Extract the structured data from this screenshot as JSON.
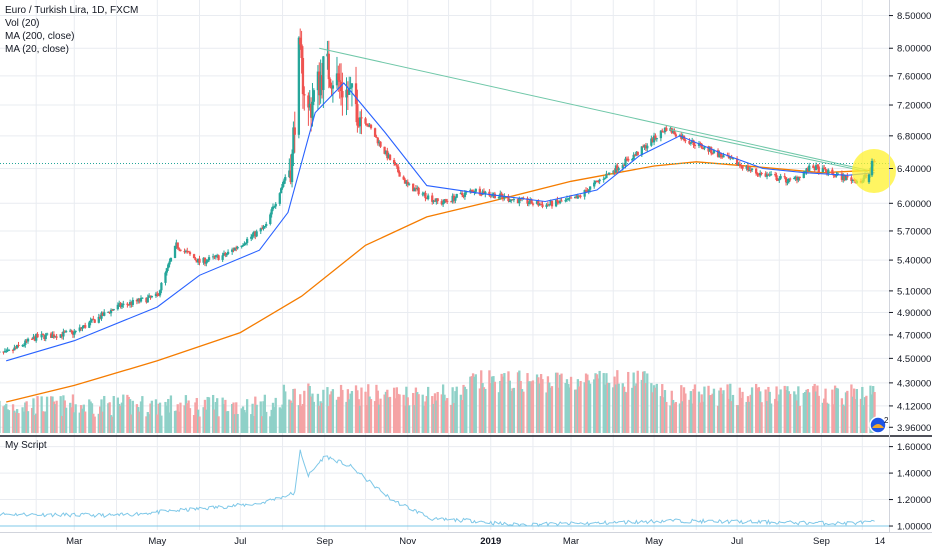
{
  "header": {
    "title": "Euro / Turkish Lira, 1D, FXCM",
    "indicators": [
      "Vol (20)",
      "MA (200, close)",
      "MA (20, close)"
    ],
    "script_label": "My Script"
  },
  "colors": {
    "up": "#26a69a",
    "down": "#ef5350",
    "vol_up": "#8fd1c8",
    "vol_down": "#f5a3a5",
    "ma20": "#2962ff",
    "ma200": "#f57c00",
    "trendline": "#6fc7a8",
    "price_line": "#26a69a",
    "script_line": "#7fc8e8",
    "highlight": "#fff12e",
    "axis_text": "#131722"
  },
  "price_axis": {
    "ticks": [
      "8.50000",
      "8.00000",
      "7.60000",
      "7.20000",
      "6.80000",
      "6.40000",
      "6.00000",
      "5.70000",
      "5.40000",
      "5.10000",
      "4.90000",
      "4.70000",
      "4.50000",
      "4.30000",
      "4.12000",
      "3.96000"
    ],
    "scale": "log",
    "range": [
      3.94,
      8.62
    ]
  },
  "script_axis": {
    "ticks": [
      "1.60000",
      "1.40000",
      "1.20000",
      "1.00000"
    ],
    "range": [
      0.97,
      1.65
    ]
  },
  "time_axis": {
    "labels": [
      "Mar",
      "May",
      "Jul",
      "Sep",
      "Nov",
      "2019",
      "Mar",
      "May",
      "Jul",
      "Sep",
      "14"
    ],
    "bold": [
      false,
      false,
      false,
      false,
      false,
      true,
      false,
      false,
      false,
      false,
      false
    ]
  },
  "badge": {
    "count": "2"
  },
  "chart_data": {
    "type": "candlestick",
    "title": "Euro / Turkish Lira, 1D, FXCM",
    "y_scale": "log",
    "ylim": [
      3.94,
      8.62
    ],
    "x_range": [
      "2018-01",
      "2019-10"
    ],
    "close_path": [
      [
        "2018-01-10",
        4.54
      ],
      [
        "2018-02-01",
        4.68
      ],
      [
        "2018-03-01",
        4.72
      ],
      [
        "2018-04-01",
        4.95
      ],
      [
        "2018-05-01",
        5.05
      ],
      [
        "2018-05-15",
        5.55
      ],
      [
        "2018-06-01",
        5.38
      ],
      [
        "2018-06-20",
        5.45
      ],
      [
        "2018-07-20",
        5.75
      ],
      [
        "2018-08-08",
        6.5
      ],
      [
        "2018-08-13",
        7.9
      ],
      [
        "2018-08-20",
        7.1
      ],
      [
        "2018-09-01",
        7.75
      ],
      [
        "2018-09-20",
        7.3
      ],
      [
        "2018-10-15",
        6.6
      ],
      [
        "2018-11-01",
        6.2
      ],
      [
        "2018-11-25",
        6.0
      ],
      [
        "2018-12-20",
        6.15
      ],
      [
        "2019-01-15",
        6.05
      ],
      [
        "2019-02-10",
        5.98
      ],
      [
        "2019-03-05",
        6.05
      ],
      [
        "2019-03-25",
        6.3
      ],
      [
        "2019-04-20",
        6.6
      ],
      [
        "2019-05-10",
        6.9
      ],
      [
        "2019-05-25",
        6.75
      ],
      [
        "2019-06-20",
        6.55
      ],
      [
        "2019-07-15",
        6.35
      ],
      [
        "2019-08-10",
        6.25
      ],
      [
        "2019-08-25",
        6.42
      ],
      [
        "2019-09-15",
        6.3
      ],
      [
        "2019-10-01",
        6.25
      ],
      [
        "2019-10-10",
        6.48
      ]
    ],
    "ma20_path": [
      [
        "2018-01-10",
        4.48
      ],
      [
        "2018-03-01",
        4.65
      ],
      [
        "2018-05-01",
        4.95
      ],
      [
        "2018-06-01",
        5.25
      ],
      [
        "2018-07-15",
        5.5
      ],
      [
        "2018-08-05",
        5.9
      ],
      [
        "2018-08-25",
        7.1
      ],
      [
        "2018-09-15",
        7.5
      ],
      [
        "2018-10-15",
        6.85
      ],
      [
        "2018-11-15",
        6.2
      ],
      [
        "2018-12-20",
        6.12
      ],
      [
        "2019-02-10",
        6.02
      ],
      [
        "2019-03-20",
        6.15
      ],
      [
        "2019-04-20",
        6.55
      ],
      [
        "2019-05-20",
        6.8
      ],
      [
        "2019-06-20",
        6.58
      ],
      [
        "2019-07-20",
        6.4
      ],
      [
        "2019-08-20",
        6.35
      ],
      [
        "2019-09-20",
        6.32
      ],
      [
        "2019-10-10",
        6.35
      ]
    ],
    "ma200_path": [
      [
        "2018-01-10",
        4.15
      ],
      [
        "2018-03-01",
        4.28
      ],
      [
        "2018-05-01",
        4.48
      ],
      [
        "2018-07-01",
        4.72
      ],
      [
        "2018-08-15",
        5.05
      ],
      [
        "2018-10-01",
        5.55
      ],
      [
        "2018-11-15",
        5.85
      ],
      [
        "2019-01-01",
        6.02
      ],
      [
        "2019-03-01",
        6.25
      ],
      [
        "2019-05-01",
        6.43
      ],
      [
        "2019-06-01",
        6.48
      ],
      [
        "2019-07-15",
        6.42
      ],
      [
        "2019-09-01",
        6.35
      ],
      [
        "2019-10-10",
        6.38
      ]
    ],
    "trendlines": [
      {
        "from": [
          "2018-08-28",
          8.0
        ],
        "to": [
          "2019-10-05",
          6.38
        ]
      },
      {
        "from": [
          "2019-05-12",
          6.88
        ],
        "to": [
          "2019-10-05",
          6.36
        ]
      }
    ],
    "horizontal_line": 6.46,
    "script_series": [
      [
        "2018-01-10",
        1.09
      ],
      [
        "2018-04-01",
        1.08
      ],
      [
        "2018-06-01",
        1.13
      ],
      [
        "2018-07-15",
        1.17
      ],
      [
        "2018-08-10",
        1.25
      ],
      [
        "2018-08-14",
        1.57
      ],
      [
        "2018-08-20",
        1.38
      ],
      [
        "2018-09-01",
        1.53
      ],
      [
        "2018-09-20",
        1.45
      ],
      [
        "2018-10-20",
        1.2
      ],
      [
        "2018-11-20",
        1.05
      ],
      [
        "2018-12-20",
        1.04
      ],
      [
        "2019-01-15",
        1.01
      ],
      [
        "2019-03-15",
        1.02
      ],
      [
        "2019-05-15",
        1.04
      ],
      [
        "2019-07-15",
        1.03
      ],
      [
        "2019-09-15",
        1.02
      ],
      [
        "2019-10-10",
        1.03
      ]
    ],
    "script_baseline": 1.0
  }
}
